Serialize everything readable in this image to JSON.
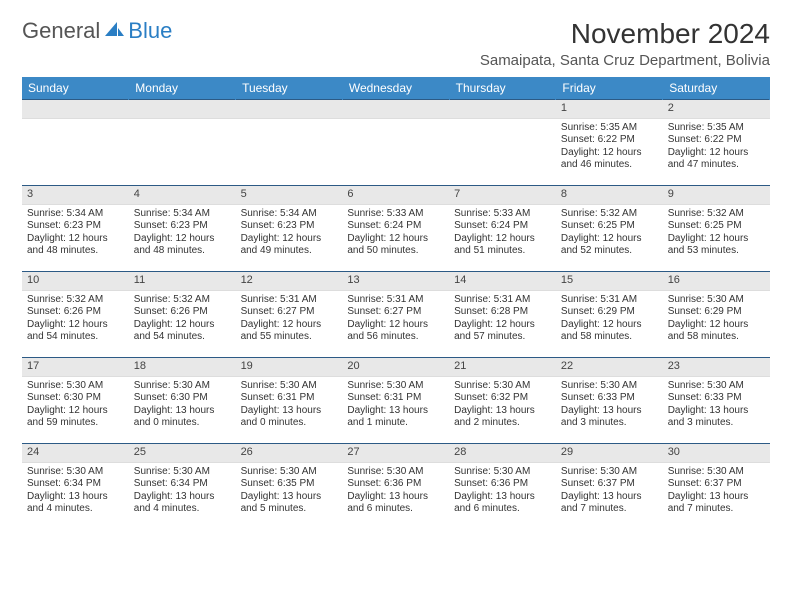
{
  "logo": {
    "general": "General",
    "blue": "Blue"
  },
  "title": "November 2024",
  "location": "Samaipata, Santa Cruz Department, Bolivia",
  "colors": {
    "header_bg": "#3c89c6",
    "header_fg": "#ffffff",
    "daynum_bg": "#e8e8e8",
    "row_border": "#2c5a85",
    "logo_blue": "#2a7ec4",
    "text": "#333333"
  },
  "weekdays": [
    "Sunday",
    "Monday",
    "Tuesday",
    "Wednesday",
    "Thursday",
    "Friday",
    "Saturday"
  ],
  "weeks": [
    [
      {
        "n": "",
        "lines": []
      },
      {
        "n": "",
        "lines": []
      },
      {
        "n": "",
        "lines": []
      },
      {
        "n": "",
        "lines": []
      },
      {
        "n": "",
        "lines": []
      },
      {
        "n": "1",
        "lines": [
          "Sunrise: 5:35 AM",
          "Sunset: 6:22 PM",
          "Daylight: 12 hours and 46 minutes."
        ]
      },
      {
        "n": "2",
        "lines": [
          "Sunrise: 5:35 AM",
          "Sunset: 6:22 PM",
          "Daylight: 12 hours and 47 minutes."
        ]
      }
    ],
    [
      {
        "n": "3",
        "lines": [
          "Sunrise: 5:34 AM",
          "Sunset: 6:23 PM",
          "Daylight: 12 hours and 48 minutes."
        ]
      },
      {
        "n": "4",
        "lines": [
          "Sunrise: 5:34 AM",
          "Sunset: 6:23 PM",
          "Daylight: 12 hours and 48 minutes."
        ]
      },
      {
        "n": "5",
        "lines": [
          "Sunrise: 5:34 AM",
          "Sunset: 6:23 PM",
          "Daylight: 12 hours and 49 minutes."
        ]
      },
      {
        "n": "6",
        "lines": [
          "Sunrise: 5:33 AM",
          "Sunset: 6:24 PM",
          "Daylight: 12 hours and 50 minutes."
        ]
      },
      {
        "n": "7",
        "lines": [
          "Sunrise: 5:33 AM",
          "Sunset: 6:24 PM",
          "Daylight: 12 hours and 51 minutes."
        ]
      },
      {
        "n": "8",
        "lines": [
          "Sunrise: 5:32 AM",
          "Sunset: 6:25 PM",
          "Daylight: 12 hours and 52 minutes."
        ]
      },
      {
        "n": "9",
        "lines": [
          "Sunrise: 5:32 AM",
          "Sunset: 6:25 PM",
          "Daylight: 12 hours and 53 minutes."
        ]
      }
    ],
    [
      {
        "n": "10",
        "lines": [
          "Sunrise: 5:32 AM",
          "Sunset: 6:26 PM",
          "Daylight: 12 hours and 54 minutes."
        ]
      },
      {
        "n": "11",
        "lines": [
          "Sunrise: 5:32 AM",
          "Sunset: 6:26 PM",
          "Daylight: 12 hours and 54 minutes."
        ]
      },
      {
        "n": "12",
        "lines": [
          "Sunrise: 5:31 AM",
          "Sunset: 6:27 PM",
          "Daylight: 12 hours and 55 minutes."
        ]
      },
      {
        "n": "13",
        "lines": [
          "Sunrise: 5:31 AM",
          "Sunset: 6:27 PM",
          "Daylight: 12 hours and 56 minutes."
        ]
      },
      {
        "n": "14",
        "lines": [
          "Sunrise: 5:31 AM",
          "Sunset: 6:28 PM",
          "Daylight: 12 hours and 57 minutes."
        ]
      },
      {
        "n": "15",
        "lines": [
          "Sunrise: 5:31 AM",
          "Sunset: 6:29 PM",
          "Daylight: 12 hours and 58 minutes."
        ]
      },
      {
        "n": "16",
        "lines": [
          "Sunrise: 5:30 AM",
          "Sunset: 6:29 PM",
          "Daylight: 12 hours and 58 minutes."
        ]
      }
    ],
    [
      {
        "n": "17",
        "lines": [
          "Sunrise: 5:30 AM",
          "Sunset: 6:30 PM",
          "Daylight: 12 hours and 59 minutes."
        ]
      },
      {
        "n": "18",
        "lines": [
          "Sunrise: 5:30 AM",
          "Sunset: 6:30 PM",
          "Daylight: 13 hours and 0 minutes."
        ]
      },
      {
        "n": "19",
        "lines": [
          "Sunrise: 5:30 AM",
          "Sunset: 6:31 PM",
          "Daylight: 13 hours and 0 minutes."
        ]
      },
      {
        "n": "20",
        "lines": [
          "Sunrise: 5:30 AM",
          "Sunset: 6:31 PM",
          "Daylight: 13 hours and 1 minute."
        ]
      },
      {
        "n": "21",
        "lines": [
          "Sunrise: 5:30 AM",
          "Sunset: 6:32 PM",
          "Daylight: 13 hours and 2 minutes."
        ]
      },
      {
        "n": "22",
        "lines": [
          "Sunrise: 5:30 AM",
          "Sunset: 6:33 PM",
          "Daylight: 13 hours and 3 minutes."
        ]
      },
      {
        "n": "23",
        "lines": [
          "Sunrise: 5:30 AM",
          "Sunset: 6:33 PM",
          "Daylight: 13 hours and 3 minutes."
        ]
      }
    ],
    [
      {
        "n": "24",
        "lines": [
          "Sunrise: 5:30 AM",
          "Sunset: 6:34 PM",
          "Daylight: 13 hours and 4 minutes."
        ]
      },
      {
        "n": "25",
        "lines": [
          "Sunrise: 5:30 AM",
          "Sunset: 6:34 PM",
          "Daylight: 13 hours and 4 minutes."
        ]
      },
      {
        "n": "26",
        "lines": [
          "Sunrise: 5:30 AM",
          "Sunset: 6:35 PM",
          "Daylight: 13 hours and 5 minutes."
        ]
      },
      {
        "n": "27",
        "lines": [
          "Sunrise: 5:30 AM",
          "Sunset: 6:36 PM",
          "Daylight: 13 hours and 6 minutes."
        ]
      },
      {
        "n": "28",
        "lines": [
          "Sunrise: 5:30 AM",
          "Sunset: 6:36 PM",
          "Daylight: 13 hours and 6 minutes."
        ]
      },
      {
        "n": "29",
        "lines": [
          "Sunrise: 5:30 AM",
          "Sunset: 6:37 PM",
          "Daylight: 13 hours and 7 minutes."
        ]
      },
      {
        "n": "30",
        "lines": [
          "Sunrise: 5:30 AM",
          "Sunset: 6:37 PM",
          "Daylight: 13 hours and 7 minutes."
        ]
      }
    ]
  ]
}
